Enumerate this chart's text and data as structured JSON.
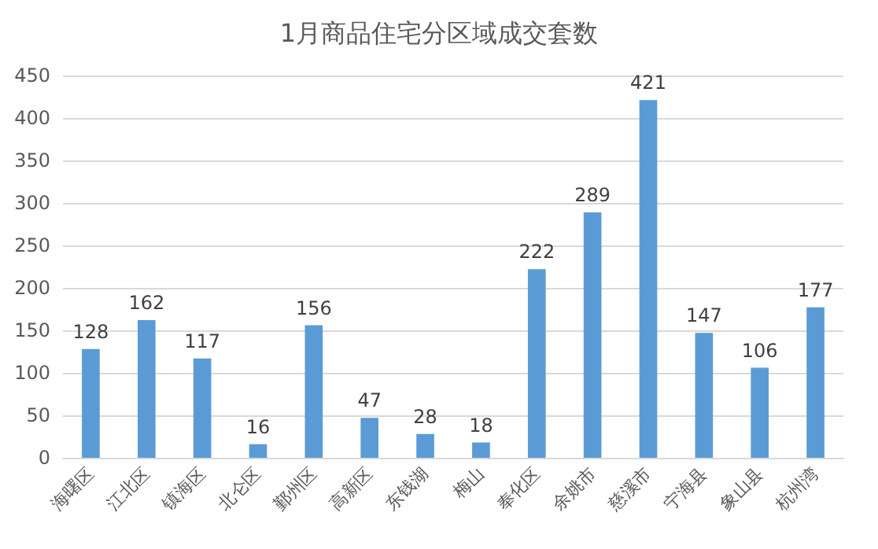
{
  "chart_data": {
    "type": "bar",
    "title": "1月商品住宅分区域成交套数",
    "categories": [
      "海曙区",
      "江北区",
      "镇海区",
      "北仑区",
      "鄞州区",
      "高新区",
      "东钱湖",
      "梅山",
      "奉化区",
      "余姚市",
      "慈溪市",
      "宁海县",
      "象山县",
      "杭州湾"
    ],
    "values": [
      128,
      162,
      117,
      16,
      156,
      47,
      28,
      18,
      222,
      289,
      421,
      147,
      106,
      177
    ],
    "color": "#5b9bd5",
    "ylim": [
      0,
      450
    ],
    "yticks": [
      0,
      50,
      100,
      150,
      200,
      250,
      300,
      350,
      400,
      450
    ],
    "grid": "y",
    "data_labels": true
  }
}
